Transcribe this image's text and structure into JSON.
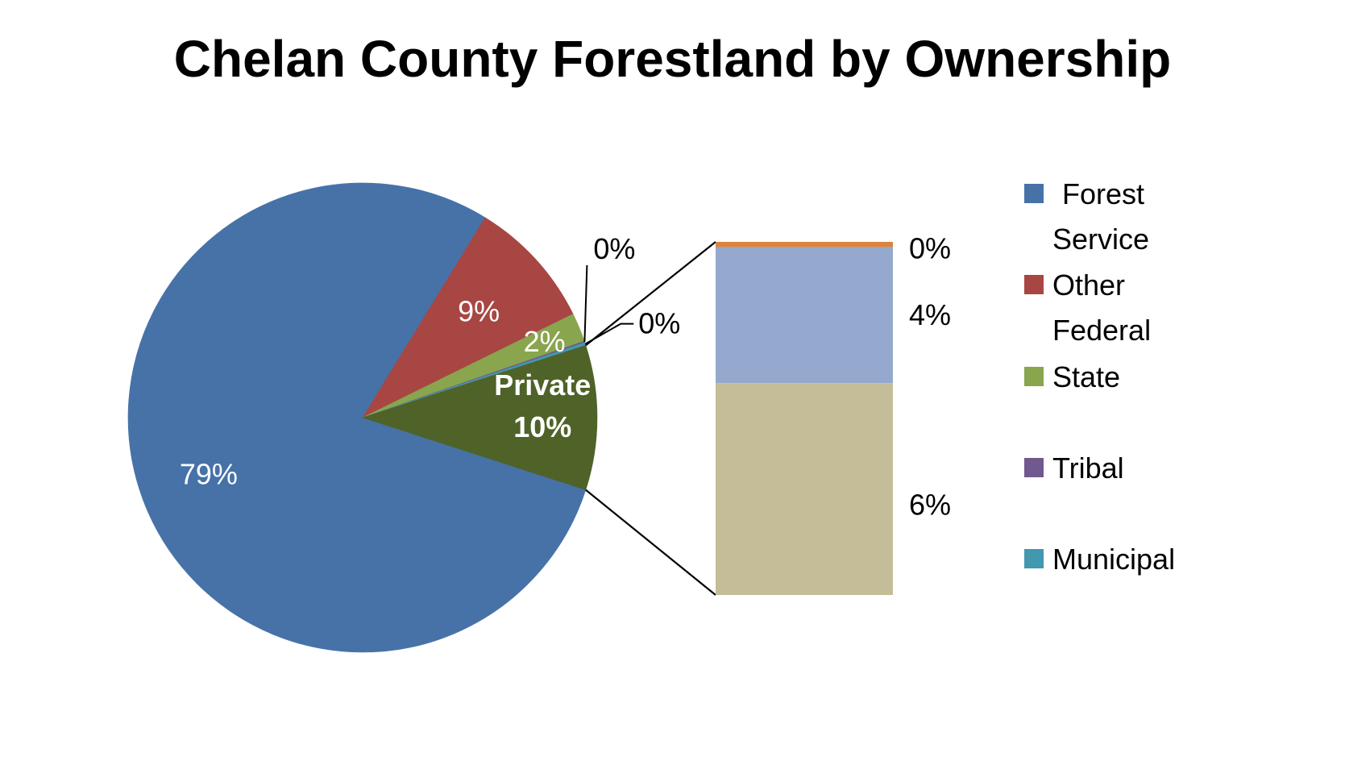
{
  "chart_data": {
    "type": "pie",
    "subtype": "bar-of-pie",
    "title": "Chelan County Forestland by Ownership",
    "slices": [
      {
        "name": "Forest Service",
        "value": 79,
        "label": "79%",
        "color": "#4672A8"
      },
      {
        "name": "Other Federal",
        "value": 9,
        "label": "9%",
        "color": "#A84644"
      },
      {
        "name": "State",
        "value": 2,
        "label": "2%",
        "color": "#89A54E"
      },
      {
        "name": "Tribal",
        "value": 0.1,
        "label": "0%",
        "color": "#71588F"
      },
      {
        "name": "Municipal",
        "value": 0.2,
        "label": "0%",
        "color": "#4198AF"
      },
      {
        "name": "Private",
        "value": 10,
        "label": "10%",
        "color": "#4F6228"
      }
    ],
    "private_breakdown": [
      {
        "value": 0.15,
        "label": "0%",
        "color": "#DB843D"
      },
      {
        "value": 3.85,
        "label": "4%",
        "color": "#95A9CF"
      },
      {
        "value": 6,
        "label": "6%",
        "color": "#C4BD97"
      }
    ],
    "legend": {
      "position": "right",
      "entries": [
        {
          "text_lines": [
            "Forest",
            "Service"
          ],
          "color": "#4672A8"
        },
        {
          "text_lines": [
            "Other",
            "Federal"
          ],
          "color": "#A84644"
        },
        {
          "text_lines": [
            "State"
          ],
          "color": "#89A54E"
        },
        {
          "text_lines": [
            "Tribal"
          ],
          "color": "#71588F"
        },
        {
          "text_lines": [
            "Municipal"
          ],
          "color": "#4198AF"
        }
      ]
    },
    "private_label": "Private"
  }
}
